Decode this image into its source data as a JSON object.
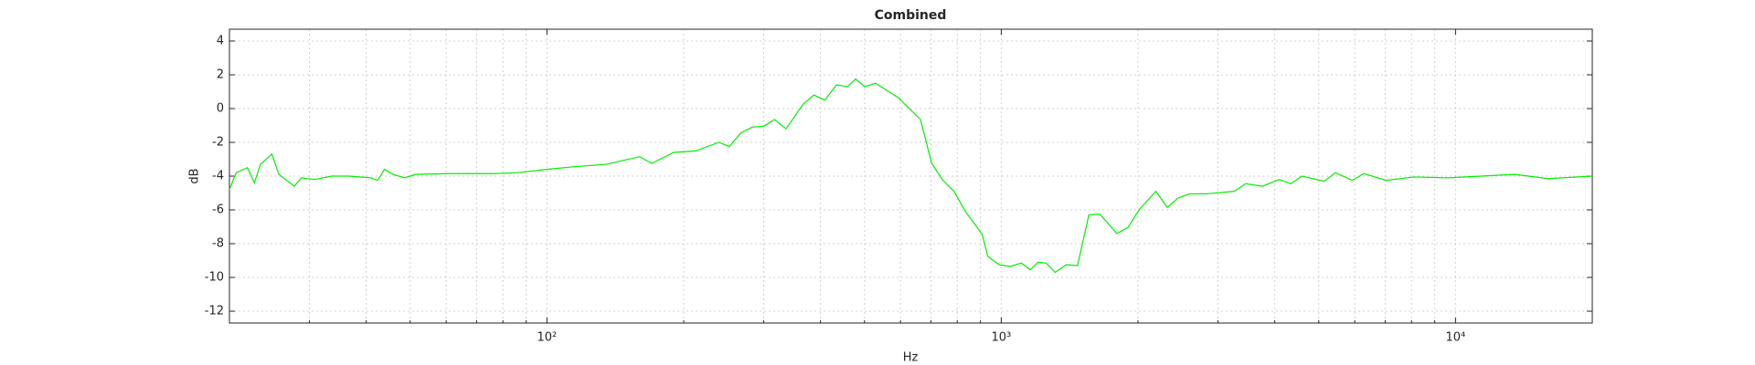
{
  "chart_data": {
    "type": "line",
    "title": "Combined",
    "x_label": "Hz",
    "y_label": "dB",
    "xscale": "log",
    "grid": true,
    "xlim": [
      20,
      20000
    ],
    "ylim": [
      -12.7,
      4.7
    ],
    "xticks": [
      {
        "value": 100,
        "label": "10²"
      },
      {
        "value": 1000,
        "label": "10³"
      },
      {
        "value": 10000,
        "label": "10⁴"
      }
    ],
    "xminorticks": [
      20,
      30,
      40,
      50,
      60,
      70,
      80,
      90,
      200,
      300,
      400,
      500,
      600,
      700,
      800,
      900,
      2000,
      3000,
      4000,
      5000,
      6000,
      7000,
      8000,
      9000,
      20000
    ],
    "yticks": [
      -12,
      -10,
      -8,
      -6,
      -4,
      -2,
      0,
      2,
      4
    ],
    "x": [
      20,
      20.7,
      21.9,
      22.7,
      23.4,
      24.8,
      25.7,
      27.8,
      28.8,
      30.8,
      33.6,
      36.6,
      40.9,
      42.4,
      43.9,
      45.9,
      48.6,
      51.4,
      61,
      68.4,
      76.6,
      85.8,
      100,
      114,
      135,
      160,
      170,
      190,
      213,
      239,
      252,
      267,
      283,
      300,
      317,
      336,
      366,
      387,
      409,
      434,
      459,
      478,
      500,
      529,
      593,
      664,
      703,
      744,
      787,
      834,
      908,
      934,
      989,
      1047,
      1107,
      1159,
      1205,
      1256,
      1314,
      1390,
      1472,
      1559,
      1649,
      1796,
      1900,
      2010,
      2190,
      2320,
      2450,
      2600,
      2830,
      3260,
      3450,
      3760,
      4090,
      4340,
      4590,
      5140,
      5440,
      5930,
      6280,
      7030,
      8110,
      9610,
      11400,
      13500,
      16000,
      20000
    ],
    "series": [
      {
        "name": "Combined",
        "color": "#00ee00",
        "values": [
          -4.8,
          -3.8,
          -3.5,
          -4.4,
          -3.3,
          -2.7,
          -3.9,
          -4.6,
          -4.1,
          -4.2,
          -4.0,
          -4.0,
          -4.1,
          -4.25,
          -3.6,
          -3.9,
          -4.1,
          -3.9,
          -3.85,
          -3.85,
          -3.85,
          -3.8,
          -3.6,
          -3.45,
          -3.3,
          -2.85,
          -3.25,
          -2.6,
          -2.5,
          -2.0,
          -2.25,
          -1.45,
          -1.1,
          -1.05,
          -0.65,
          -1.2,
          0.25,
          0.8,
          0.5,
          1.4,
          1.3,
          1.75,
          1.3,
          1.5,
          0.65,
          -0.65,
          -3.25,
          -4.25,
          -4.9,
          -6.1,
          -7.45,
          -8.75,
          -9.25,
          -9.35,
          -9.15,
          -9.55,
          -9.1,
          -9.15,
          -9.7,
          -9.25,
          -9.3,
          -6.3,
          -6.25,
          -7.4,
          -7.05,
          -6.0,
          -4.9,
          -5.85,
          -5.3,
          -5.05,
          -5.05,
          -4.9,
          -4.45,
          -4.6,
          -4.2,
          -4.45,
          -4.0,
          -4.3,
          -3.8,
          -4.25,
          -3.85,
          -4.25,
          -4.05,
          -4.1,
          -4.0,
          -3.9,
          -4.15,
          -4.0
        ]
      }
    ]
  }
}
